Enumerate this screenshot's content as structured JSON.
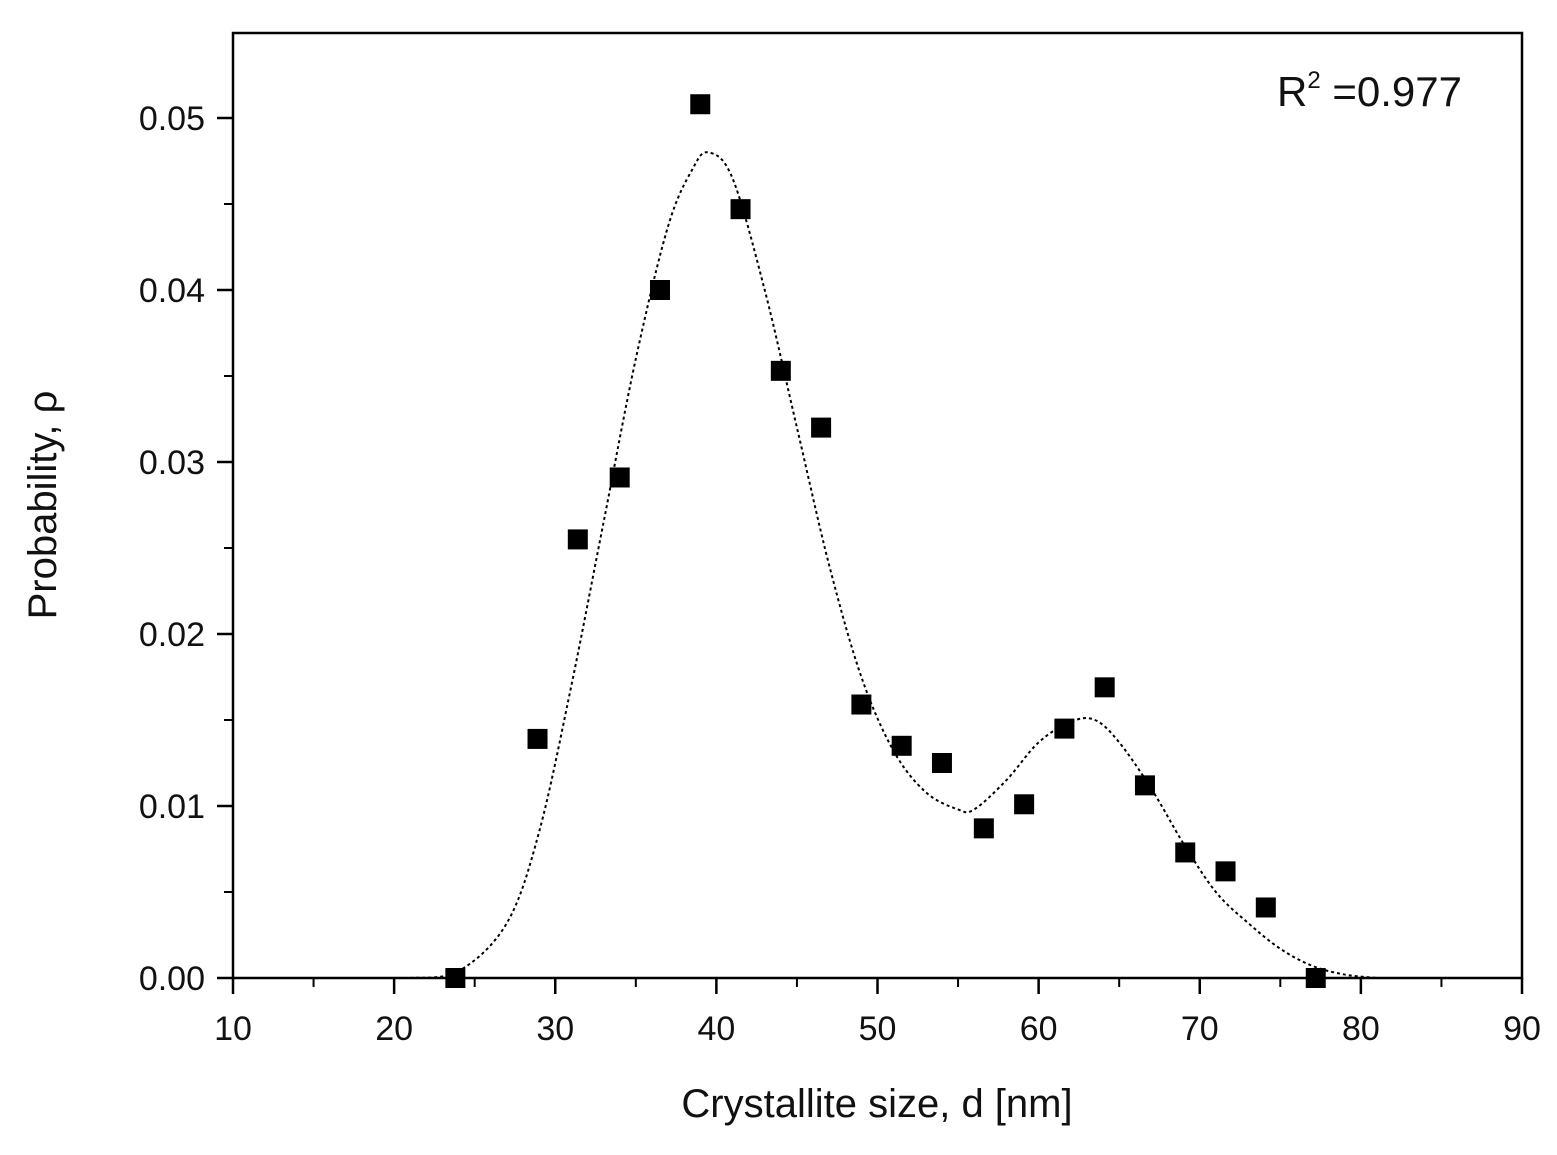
{
  "chart_data": {
    "type": "scatter",
    "title": "",
    "xlabel": "Crystallite size, d [nm]",
    "ylabel": "Probability, ρ",
    "xlim": [
      10,
      90
    ],
    "ylim": [
      0,
      0.055
    ],
    "x_ticks": [
      10,
      20,
      30,
      40,
      50,
      60,
      70,
      80,
      90
    ],
    "x_tick_labels": [
      "10",
      "20",
      "30",
      "40",
      "50",
      "60",
      "70",
      "80",
      "90"
    ],
    "y_ticks": [
      0,
      0.01,
      0.02,
      0.03,
      0.04,
      0.05
    ],
    "y_tick_labels": [
      "0.00",
      "0.01",
      "0.02",
      "0.03",
      "0.04",
      "0.05"
    ],
    "grid": false,
    "annotation": {
      "base": "R",
      "superscript": "2",
      "rest": " =0.977"
    },
    "series": [
      {
        "kind": "scatter",
        "marker": "square",
        "color": "#000000",
        "points": [
          {
            "x": 23.8,
            "y": 0.0
          },
          {
            "x": 28.9,
            "y": 0.0139
          },
          {
            "x": 31.4,
            "y": 0.0255
          },
          {
            "x": 34.0,
            "y": 0.0291
          },
          {
            "x": 36.5,
            "y": 0.04
          },
          {
            "x": 39.0,
            "y": 0.0508
          },
          {
            "x": 41.5,
            "y": 0.0447
          },
          {
            "x": 44.0,
            "y": 0.0353
          },
          {
            "x": 46.5,
            "y": 0.032
          },
          {
            "x": 49.0,
            "y": 0.0159
          },
          {
            "x": 51.5,
            "y": 0.0135
          },
          {
            "x": 54.0,
            "y": 0.0125
          },
          {
            "x": 56.6,
            "y": 0.0087
          },
          {
            "x": 59.1,
            "y": 0.0101
          },
          {
            "x": 61.6,
            "y": 0.0145
          },
          {
            "x": 64.1,
            "y": 0.0169
          },
          {
            "x": 66.6,
            "y": 0.0112
          },
          {
            "x": 69.1,
            "y": 0.0073
          },
          {
            "x": 71.6,
            "y": 0.0062
          },
          {
            "x": 74.1,
            "y": 0.0041
          },
          {
            "x": 77.2,
            "y": 0.0
          }
        ]
      },
      {
        "kind": "line",
        "style": "dotted",
        "color": "#000000",
        "points": [
          {
            "x": 21,
            "y": 0.0
          },
          {
            "x": 24,
            "y": 0.0004
          },
          {
            "x": 27,
            "y": 0.0032
          },
          {
            "x": 29,
            "y": 0.0085
          },
          {
            "x": 31,
            "y": 0.017
          },
          {
            "x": 33,
            "y": 0.0265
          },
          {
            "x": 35,
            "y": 0.036
          },
          {
            "x": 37,
            "y": 0.0437
          },
          {
            "x": 38.5,
            "y": 0.047
          },
          {
            "x": 39.5,
            "y": 0.048
          },
          {
            "x": 41,
            "y": 0.0465
          },
          {
            "x": 43,
            "y": 0.04
          },
          {
            "x": 45,
            "y": 0.032
          },
          {
            "x": 47,
            "y": 0.024
          },
          {
            "x": 49,
            "y": 0.0175
          },
          {
            "x": 51,
            "y": 0.0132
          },
          {
            "x": 53,
            "y": 0.0108
          },
          {
            "x": 55,
            "y": 0.0098
          },
          {
            "x": 56,
            "y": 0.0098
          },
          {
            "x": 58,
            "y": 0.0115
          },
          {
            "x": 60,
            "y": 0.0137
          },
          {
            "x": 62,
            "y": 0.0149
          },
          {
            "x": 63.5,
            "y": 0.015
          },
          {
            "x": 65,
            "y": 0.0137
          },
          {
            "x": 67,
            "y": 0.011
          },
          {
            "x": 69,
            "y": 0.0078
          },
          {
            "x": 71,
            "y": 0.005
          },
          {
            "x": 73,
            "y": 0.0032
          },
          {
            "x": 75,
            "y": 0.0017
          },
          {
            "x": 77,
            "y": 0.0007
          },
          {
            "x": 79,
            "y": 0.0002
          },
          {
            "x": 81,
            "y": 0.0
          }
        ]
      }
    ]
  }
}
